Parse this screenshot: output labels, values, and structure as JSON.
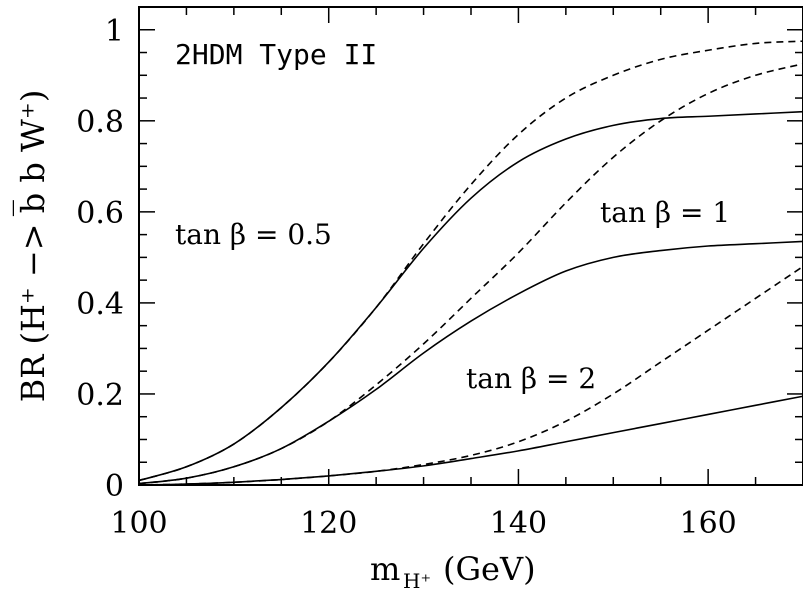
{
  "chart_data": {
    "type": "line",
    "title": "",
    "model_label": "2HDM Type II",
    "xlabel_main": "m",
    "xlabel_sub": "H⁺",
    "xlabel_unit": "(GeV)",
    "ylabel": "BR (H⁺ −> b̅ b W⁺)",
    "xlim": [
      100,
      170
    ],
    "ylim": [
      0,
      1.05
    ],
    "x_ticks": [
      "100",
      "120",
      "140",
      "160"
    ],
    "y_ticks": [
      "0",
      "0.2",
      "0.4",
      "0.6",
      "0.8",
      "1"
    ],
    "annotations": [
      {
        "text": "tan β = 0.5"
      },
      {
        "text": "tan β = 1"
      },
      {
        "text": "tan β = 2"
      }
    ],
    "series": [
      {
        "style": "solid",
        "x": [
          100,
          105,
          110,
          115,
          120,
          125,
          130,
          135,
          140,
          145,
          150,
          155,
          160,
          165,
          170
        ],
        "values": [
          0.01,
          0.04,
          0.09,
          0.17,
          0.27,
          0.39,
          0.52,
          0.63,
          0.71,
          0.76,
          0.79,
          0.805,
          0.81,
          0.815,
          0.82
        ]
      },
      {
        "style": "dashed",
        "x": [
          100,
          105,
          110,
          115,
          120,
          125,
          130,
          135,
          140,
          145,
          150,
          155,
          160,
          165,
          170
        ],
        "values": [
          0.01,
          0.04,
          0.09,
          0.17,
          0.27,
          0.39,
          0.53,
          0.66,
          0.77,
          0.85,
          0.9,
          0.935,
          0.955,
          0.97,
          0.975
        ]
      },
      {
        "style": "solid",
        "x": [
          100,
          105,
          110,
          115,
          120,
          125,
          130,
          135,
          140,
          145,
          150,
          155,
          160,
          165,
          170
        ],
        "values": [
          0.003,
          0.015,
          0.04,
          0.08,
          0.14,
          0.21,
          0.29,
          0.36,
          0.42,
          0.47,
          0.5,
          0.515,
          0.525,
          0.53,
          0.535
        ]
      },
      {
        "style": "dashed",
        "x": [
          100,
          105,
          110,
          115,
          120,
          125,
          130,
          135,
          140,
          145,
          150,
          155,
          160,
          165,
          170
        ],
        "values": [
          0.003,
          0.015,
          0.04,
          0.08,
          0.14,
          0.22,
          0.31,
          0.41,
          0.51,
          0.62,
          0.72,
          0.8,
          0.86,
          0.9,
          0.925
        ]
      },
      {
        "style": "solid",
        "x": [
          100,
          105,
          110,
          115,
          120,
          125,
          130,
          135,
          140,
          145,
          150,
          155,
          160,
          165,
          170
        ],
        "values": [
          0.0,
          0.002,
          0.006,
          0.012,
          0.02,
          0.03,
          0.042,
          0.058,
          0.075,
          0.095,
          0.115,
          0.135,
          0.155,
          0.175,
          0.195
        ]
      },
      {
        "style": "dashed",
        "x": [
          100,
          105,
          110,
          115,
          120,
          125,
          130,
          135,
          140,
          145,
          150,
          155,
          160,
          165,
          170
        ],
        "values": [
          0.0,
          0.002,
          0.006,
          0.012,
          0.02,
          0.03,
          0.045,
          0.065,
          0.095,
          0.14,
          0.2,
          0.27,
          0.34,
          0.41,
          0.48
        ]
      }
    ]
  }
}
